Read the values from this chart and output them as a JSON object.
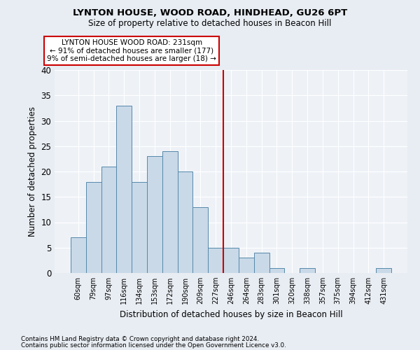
{
  "title1": "LYNTON HOUSE, WOOD ROAD, HINDHEAD, GU26 6PT",
  "title2": "Size of property relative to detached houses in Beacon Hill",
  "xlabel": "Distribution of detached houses by size in Beacon Hill",
  "ylabel": "Number of detached properties",
  "categories": [
    "60sqm",
    "79sqm",
    "97sqm",
    "116sqm",
    "134sqm",
    "153sqm",
    "172sqm",
    "190sqm",
    "209sqm",
    "227sqm",
    "246sqm",
    "264sqm",
    "283sqm",
    "301sqm",
    "320sqm",
    "338sqm",
    "357sqm",
    "375sqm",
    "394sqm",
    "412sqm",
    "431sqm"
  ],
  "values": [
    7,
    18,
    21,
    33,
    18,
    23,
    24,
    20,
    13,
    5,
    5,
    3,
    4,
    1,
    0,
    1,
    0,
    0,
    0,
    0,
    1
  ],
  "bar_color": "#c9d9e8",
  "bar_edge_color": "#5588aa",
  "vline_x_index": 9.5,
  "vline_color": "#cc0000",
  "annotation_text": "LYNTON HOUSE WOOD ROAD: 231sqm\n← 91% of detached houses are smaller (177)\n9% of semi-detached houses are larger (18) →",
  "annotation_box_color": "#ffffff",
  "annotation_edge_color": "#cc0000",
  "background_color": "#e8edf3",
  "plot_bg_color": "#eef2f7",
  "footer1": "Contains HM Land Registry data © Crown copyright and database right 2024.",
  "footer2": "Contains public sector information licensed under the Open Government Licence v3.0.",
  "ylim": [
    0,
    40
  ],
  "yticks": [
    0,
    5,
    10,
    15,
    20,
    25,
    30,
    35,
    40
  ]
}
